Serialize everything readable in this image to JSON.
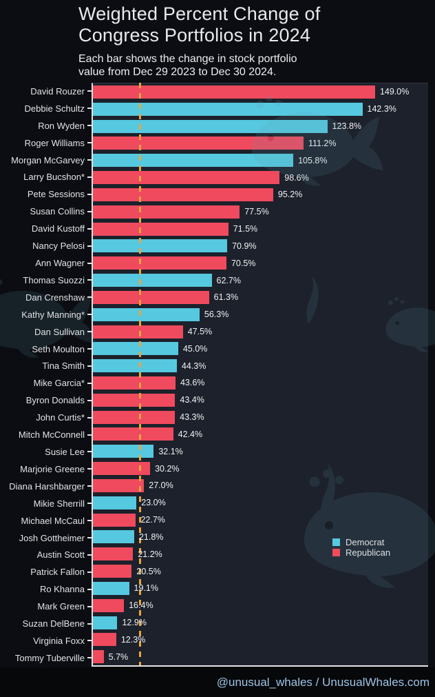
{
  "header": {
    "title_line1": "Weighted Percent Change of",
    "title_line2": "Congress Portfolios in 2024",
    "subtitle_line1": "Each bar shows the change in stock portfolio",
    "subtitle_line2": "value from Dec 29 2023 to Dec 30 2024."
  },
  "legend": {
    "items": [
      {
        "label": "Democrat",
        "color": "#56C8E0"
      },
      {
        "label": "Republican",
        "color": "#F04A5E"
      }
    ]
  },
  "footer": {
    "credit": "@unusual_whales / UnusualWhales.com"
  },
  "colors": {
    "democrat": "#56C8E0",
    "republican": "#F04A5E",
    "reference_line": "#E9A63F",
    "plot_background": "#1C212B",
    "page_background": "#0B0D12",
    "axis_spine": "#E2E3E5",
    "footer_text": "#9EC4E8"
  },
  "icons": {
    "watermark": "whale-watermark"
  },
  "chart_data": {
    "type": "bar",
    "orientation": "horizontal",
    "title": "Weighted Percent Change of Congress Portfolios in 2024",
    "subtitle": "Each bar shows the change in stock portfolio value from Dec 29 2023 to Dec 30 2024.",
    "unit": "%",
    "xlim": [
      0,
      177
    ],
    "grid": false,
    "reference_line_x": 25,
    "legend_position": "inside-lower-right",
    "bars": [
      {
        "name": "David Rouzer",
        "party": "Republican",
        "value": 149.0,
        "label": "149.0%"
      },
      {
        "name": "Debbie Schultz",
        "party": "Democrat",
        "value": 142.3,
        "label": "142.3%"
      },
      {
        "name": "Ron Wyden",
        "party": "Democrat",
        "value": 123.8,
        "label": "123.8%"
      },
      {
        "name": "Roger Williams",
        "party": "Republican",
        "value": 111.2,
        "label": "111.2%"
      },
      {
        "name": "Morgan McGarvey",
        "party": "Democrat",
        "value": 105.8,
        "label": "105.8%"
      },
      {
        "name": "Larry Bucshon*",
        "party": "Republican",
        "value": 98.6,
        "label": "98.6%"
      },
      {
        "name": "Pete Sessions",
        "party": "Republican",
        "value": 95.2,
        "label": "95.2%"
      },
      {
        "name": "Susan Collins",
        "party": "Republican",
        "value": 77.5,
        "label": "77.5%"
      },
      {
        "name": "David Kustoff",
        "party": "Republican",
        "value": 71.5,
        "label": "71.5%"
      },
      {
        "name": "Nancy Pelosi",
        "party": "Democrat",
        "value": 70.9,
        "label": "70.9%"
      },
      {
        "name": "Ann Wagner",
        "party": "Republican",
        "value": 70.5,
        "label": "70.5%"
      },
      {
        "name": "Thomas Suozzi",
        "party": "Democrat",
        "value": 62.7,
        "label": "62.7%"
      },
      {
        "name": "Dan Crenshaw",
        "party": "Republican",
        "value": 61.3,
        "label": "61.3%"
      },
      {
        "name": "Kathy Manning*",
        "party": "Democrat",
        "value": 56.3,
        "label": "56.3%"
      },
      {
        "name": "Dan Sullivan",
        "party": "Republican",
        "value": 47.5,
        "label": "47.5%"
      },
      {
        "name": "Seth Moulton",
        "party": "Democrat",
        "value": 45.0,
        "label": "45.0%"
      },
      {
        "name": "Tina Smith",
        "party": "Democrat",
        "value": 44.3,
        "label": "44.3%"
      },
      {
        "name": "Mike Garcia*",
        "party": "Republican",
        "value": 43.6,
        "label": "43.6%"
      },
      {
        "name": "Byron Donalds",
        "party": "Republican",
        "value": 43.4,
        "label": "43.4%"
      },
      {
        "name": "John Curtis*",
        "party": "Republican",
        "value": 43.3,
        "label": "43.3%"
      },
      {
        "name": "Mitch McConnell",
        "party": "Republican",
        "value": 42.4,
        "label": "42.4%"
      },
      {
        "name": "Susie Lee",
        "party": "Democrat",
        "value": 32.1,
        "label": "32.1%"
      },
      {
        "name": "Marjorie Greene",
        "party": "Republican",
        "value": 30.2,
        "label": "30.2%"
      },
      {
        "name": "Diana Harshbarger",
        "party": "Republican",
        "value": 27.0,
        "label": "27.0%"
      },
      {
        "name": "Mikie Sherrill",
        "party": "Democrat",
        "value": 23.0,
        "label": "23.0%"
      },
      {
        "name": "Michael McCaul",
        "party": "Republican",
        "value": 22.7,
        "label": "22.7%"
      },
      {
        "name": "Josh Gottheimer",
        "party": "Democrat",
        "value": 21.8,
        "label": "21.8%"
      },
      {
        "name": "Austin Scott",
        "party": "Republican",
        "value": 21.2,
        "label": "21.2%"
      },
      {
        "name": "Patrick Fallon",
        "party": "Republican",
        "value": 20.5,
        "label": "20.5%"
      },
      {
        "name": "Ro Khanna",
        "party": "Democrat",
        "value": 19.1,
        "label": "19.1%"
      },
      {
        "name": "Mark Green",
        "party": "Republican",
        "value": 16.4,
        "label": "16.4%"
      },
      {
        "name": "Suzan DelBene",
        "party": "Democrat",
        "value": 12.9,
        "label": "12.9%"
      },
      {
        "name": "Virginia Foxx",
        "party": "Republican",
        "value": 12.3,
        "label": "12.3%"
      },
      {
        "name": "Tommy Tuberville",
        "party": "Republican",
        "value": 5.7,
        "label": "5.7%"
      }
    ]
  }
}
